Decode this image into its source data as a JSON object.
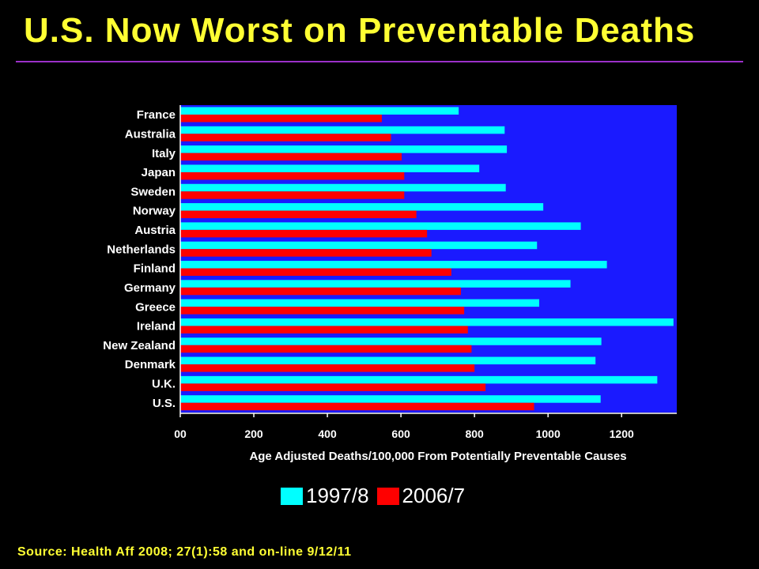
{
  "slide": {
    "title": "U.S. Now Worst on Preventable Deaths",
    "source": "Source: Health Aff 2008; 27(1):58 and on-line 9/12/11"
  },
  "colors": {
    "background": "#000000",
    "title": "#ffff33",
    "plot_area": "#1a1aff",
    "series_1997": "#00ffff",
    "series_2006": "#ff0000",
    "text": "#ffffff"
  },
  "chart_data": {
    "type": "bar",
    "orientation": "horizontal",
    "categories": [
      "France",
      "Australia",
      "Italy",
      "Japan",
      "Sweden",
      "Norway",
      "Austria",
      "Netherlands",
      "Finland",
      "Germany",
      "Greece",
      "Ireland",
      "New Zealand",
      "Denmark",
      "U.K.",
      "U.S."
    ],
    "series": [
      {
        "name": "1997/8",
        "values": [
          757,
          882,
          888,
          813,
          885,
          987,
          1089,
          970,
          1160,
          1061,
          976,
          1341,
          1145,
          1129,
          1297,
          1143
        ]
      },
      {
        "name": "2006/7",
        "values": [
          548,
          573,
          602,
          609,
          609,
          642,
          671,
          683,
          737,
          763,
          772,
          782,
          792,
          800,
          830,
          962
        ]
      }
    ],
    "xlabel": "Age Adjusted Deaths/100,000 From Potentially Preventable Causes",
    "xlim": [
      0,
      1350
    ],
    "xticks": [
      0,
      200,
      400,
      600,
      800,
      1000,
      1200
    ],
    "xtick_labels": [
      "00",
      "200",
      "400",
      "600",
      "800",
      "1000",
      "1200"
    ],
    "grid": false,
    "legend_position": "bottom-center"
  }
}
